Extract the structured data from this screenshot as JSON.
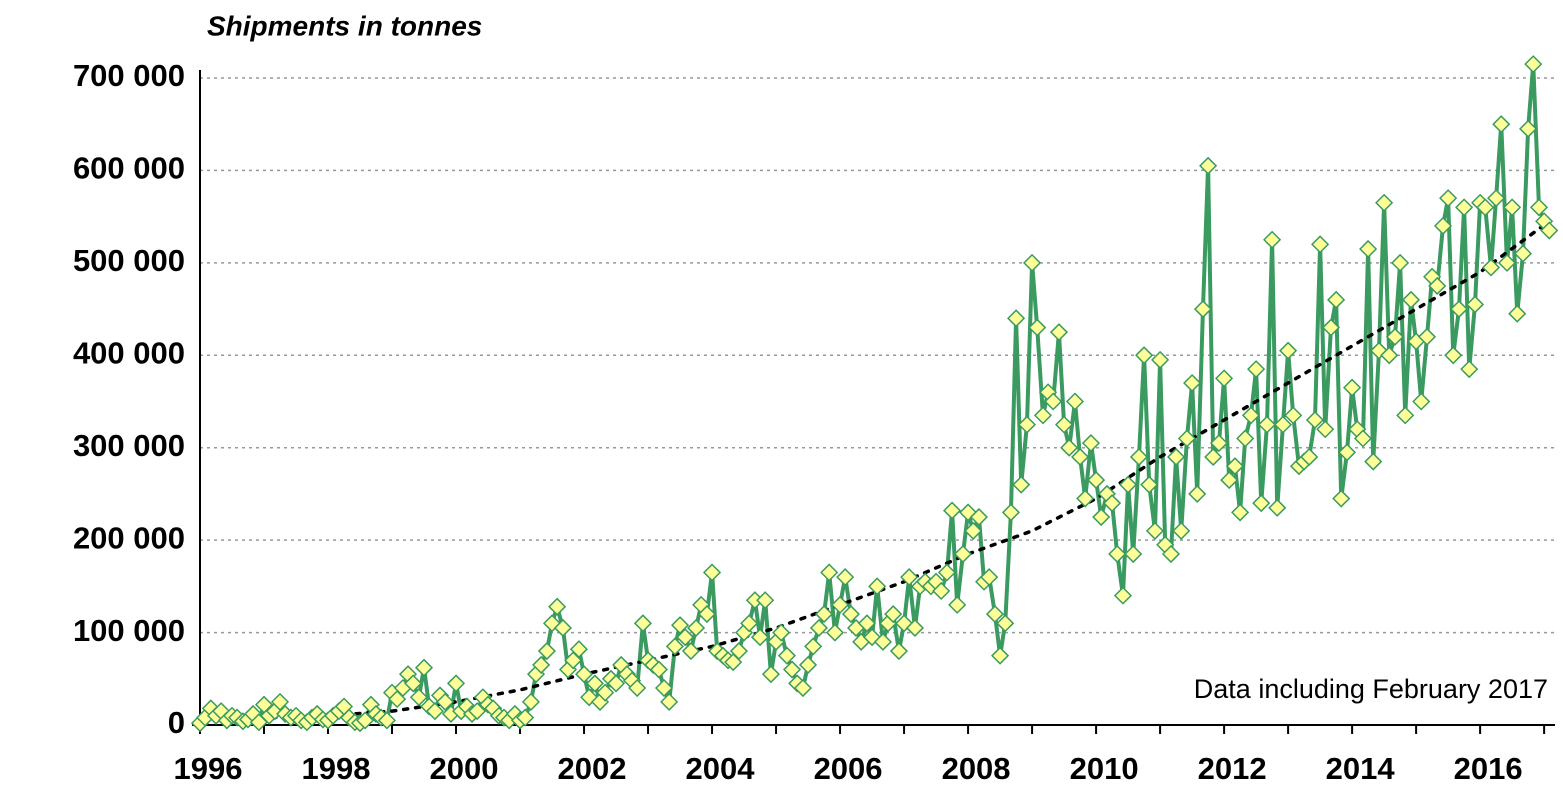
{
  "chart_data": {
    "type": "line",
    "title": "Shipments in tonnes",
    "annotation": "Data including February 2017",
    "color": "#3a9a60",
    "marker_fill": "#ffff99",
    "x": [
      1996.0,
      1996.08,
      1996.17,
      1996.25,
      1996.33,
      1996.42,
      1996.5,
      1996.58,
      1996.67,
      1996.75,
      1996.83,
      1996.92,
      1997.0,
      1997.08,
      1997.17,
      1997.25,
      1997.33,
      1997.42,
      1997.5,
      1997.58,
      1997.67,
      1997.75,
      1997.83,
      1997.92,
      1998.0,
      1998.08,
      1998.17,
      1998.25,
      1998.33,
      1998.42,
      1998.5,
      1998.58,
      1998.67,
      1998.75,
      1998.83,
      1998.92,
      1999.0,
      1999.08,
      1999.17,
      1999.25,
      1999.33,
      1999.42,
      1999.5,
      1999.58,
      1999.67,
      1999.75,
      1999.83,
      1999.92,
      2000.0,
      2000.08,
      2000.17,
      2000.25,
      2000.33,
      2000.42,
      2000.5,
      2000.58,
      2000.67,
      2000.75,
      2000.83,
      2000.92,
      2001.0,
      2001.08,
      2001.17,
      2001.25,
      2001.33,
      2001.42,
      2001.5,
      2001.58,
      2001.67,
      2001.75,
      2001.83,
      2001.92,
      2002.0,
      2002.08,
      2002.17,
      2002.25,
      2002.33,
      2002.42,
      2002.5,
      2002.58,
      2002.67,
      2002.75,
      2002.83,
      2002.92,
      2003.0,
      2003.08,
      2003.17,
      2003.25,
      2003.33,
      2003.42,
      2003.5,
      2003.58,
      2003.67,
      2003.75,
      2003.83,
      2003.92,
      2004.0,
      2004.08,
      2004.17,
      2004.25,
      2004.33,
      2004.42,
      2004.5,
      2004.58,
      2004.67,
      2004.75,
      2004.83,
      2004.92,
      2005.0,
      2005.08,
      2005.17,
      2005.25,
      2005.33,
      2005.42,
      2005.5,
      2005.58,
      2005.67,
      2005.75,
      2005.83,
      2005.92,
      2006.0,
      2006.08,
      2006.17,
      2006.25,
      2006.33,
      2006.42,
      2006.5,
      2006.58,
      2006.67,
      2006.75,
      2006.83,
      2006.92,
      2007.0,
      2007.08,
      2007.17,
      2007.25,
      2007.33,
      2007.42,
      2007.5,
      2007.58,
      2007.67,
      2007.75,
      2007.83,
      2007.92,
      2008.0,
      2008.08,
      2008.17,
      2008.25,
      2008.33,
      2008.42,
      2008.5,
      2008.58,
      2008.67,
      2008.75,
      2008.83,
      2008.92,
      2009.0,
      2009.08,
      2009.17,
      2009.25,
      2009.33,
      2009.42,
      2009.5,
      2009.58,
      2009.67,
      2009.75,
      2009.83,
      2009.92,
      2010.0,
      2010.08,
      2010.17,
      2010.25,
      2010.33,
      2010.42,
      2010.5,
      2010.58,
      2010.67,
      2010.75,
      2010.83,
      2010.92,
      2011.0,
      2011.08,
      2011.17,
      2011.25,
      2011.33,
      2011.42,
      2011.5,
      2011.58,
      2011.67,
      2011.75,
      2011.83,
      2011.92,
      2012.0,
      2012.08,
      2012.17,
      2012.25,
      2012.33,
      2012.42,
      2012.5,
      2012.58,
      2012.67,
      2012.75,
      2012.83,
      2012.92,
      2013.0,
      2013.08,
      2013.17,
      2013.25,
      2013.33,
      2013.42,
      2013.5,
      2013.58,
      2013.67,
      2013.75,
      2013.83,
      2013.92,
      2014.0,
      2014.08,
      2014.17,
      2014.25,
      2014.33,
      2014.42,
      2014.5,
      2014.58,
      2014.67,
      2014.75,
      2014.83,
      2014.92,
      2015.0,
      2015.08,
      2015.17,
      2015.25,
      2015.33,
      2015.42,
      2015.5,
      2015.58,
      2015.67,
      2015.75,
      2015.83,
      2015.92,
      2016.0,
      2016.08,
      2016.17,
      2016.25,
      2016.33,
      2016.42,
      2016.5,
      2016.58,
      2016.67,
      2016.75,
      2016.83,
      2016.92,
      2017.0,
      2017.08
    ],
    "values": [
      2000,
      8000,
      18000,
      10000,
      15000,
      5000,
      10000,
      8000,
      4000,
      6000,
      12000,
      3000,
      22000,
      10000,
      15000,
      25000,
      12000,
      8000,
      10000,
      5000,
      3000,
      8000,
      12000,
      6000,
      5000,
      10000,
      15000,
      20000,
      8000,
      3000,
      2000,
      5000,
      22000,
      12000,
      8000,
      5000,
      35000,
      28000,
      40000,
      55000,
      45000,
      30000,
      62000,
      20000,
      15000,
      32000,
      25000,
      12000,
      45000,
      15000,
      20000,
      12000,
      15000,
      30000,
      22000,
      18000,
      10000,
      8000,
      5000,
      12000,
      5000,
      8000,
      25000,
      55000,
      65000,
      80000,
      110000,
      128000,
      105000,
      60000,
      70000,
      82000,
      55000,
      30000,
      45000,
      25000,
      35000,
      50000,
      45000,
      65000,
      55000,
      48000,
      40000,
      110000,
      70000,
      65000,
      60000,
      40000,
      25000,
      85000,
      108000,
      95000,
      80000,
      105000,
      130000,
      120000,
      165000,
      80000,
      75000,
      70000,
      68000,
      80000,
      100000,
      110000,
      135000,
      95000,
      135000,
      55000,
      90000,
      100000,
      75000,
      60000,
      45000,
      40000,
      65000,
      85000,
      105000,
      120000,
      165000,
      100000,
      130000,
      160000,
      120000,
      105000,
      90000,
      110000,
      95000,
      150000,
      90000,
      110000,
      120000,
      80000,
      110000,
      160000,
      105000,
      150000,
      155000,
      150000,
      155000,
      145000,
      165000,
      232000,
      130000,
      185000,
      230000,
      210000,
      225000,
      155000,
      160000,
      120000,
      75000,
      110000,
      230000,
      440000,
      260000,
      325000,
      500000,
      430000,
      335000,
      360000,
      350000,
      425000,
      325000,
      300000,
      350000,
      290000,
      245000,
      305000,
      265000,
      225000,
      250000,
      240000,
      185000,
      140000,
      260000,
      185000,
      290000,
      400000,
      260000,
      210000,
      395000,
      195000,
      185000,
      290000,
      210000,
      310000,
      370000,
      250000,
      450000,
      605000,
      290000,
      305000,
      375000,
      265000,
      280000,
      230000,
      310000,
      335000,
      385000,
      240000,
      325000,
      525000,
      235000,
      325000,
      405000,
      335000,
      280000,
      285000,
      290000,
      330000,
      520000,
      320000,
      430000,
      460000,
      245000,
      295000,
      365000,
      320000,
      310000,
      515000,
      285000,
      405000,
      565000,
      400000,
      420000,
      500000,
      335000,
      460000,
      415000,
      350000,
      420000,
      485000,
      475000,
      540000,
      570000,
      400000,
      450000,
      560000,
      385000,
      455000,
      565000,
      560000,
      495000,
      570000,
      650000,
      500000,
      560000,
      445000,
      510000,
      645000,
      715000,
      560000,
      545000,
      535000
    ],
    "trend": {
      "color": "#000000",
      "x": [
        1996,
        1997,
        1998,
        1999,
        2000,
        2001,
        2002,
        2003,
        2004,
        2005,
        2006,
        2007,
        2008,
        2009,
        2010,
        2011,
        2012,
        2013,
        2014,
        2015,
        2016,
        2017.08
      ],
      "values": [
        7000,
        8000,
        10000,
        15000,
        25000,
        38000,
        55000,
        70000,
        85000,
        105000,
        130000,
        155000,
        185000,
        210000,
        245000,
        290000,
        330000,
        370000,
        410000,
        450000,
        490000,
        545000
      ]
    },
    "xlim": [
      1996,
      2017.17
    ],
    "xticks": [
      1996,
      1998,
      2000,
      2002,
      2004,
      2006,
      2008,
      2010,
      2012,
      2014,
      2016
    ],
    "xminor_ticks": [
      1997,
      1999,
      2001,
      2003,
      2005,
      2007,
      2009,
      2011,
      2013,
      2015,
      2017
    ],
    "ylim": [
      0,
      700000
    ],
    "yticks": [
      0,
      {
        "value": 100000,
        "label": "100 000"
      },
      {
        "value": 200000,
        "label": "200 000"
      },
      {
        "value": 300000,
        "label": "300 000"
      },
      {
        "value": 400000,
        "label": "400 000"
      },
      {
        "value": 500000,
        "label": "500 000"
      },
      {
        "value": 600000,
        "label": "600 000"
      },
      {
        "value": 700000,
        "label": "700 000"
      }
    ],
    "grid": true
  }
}
